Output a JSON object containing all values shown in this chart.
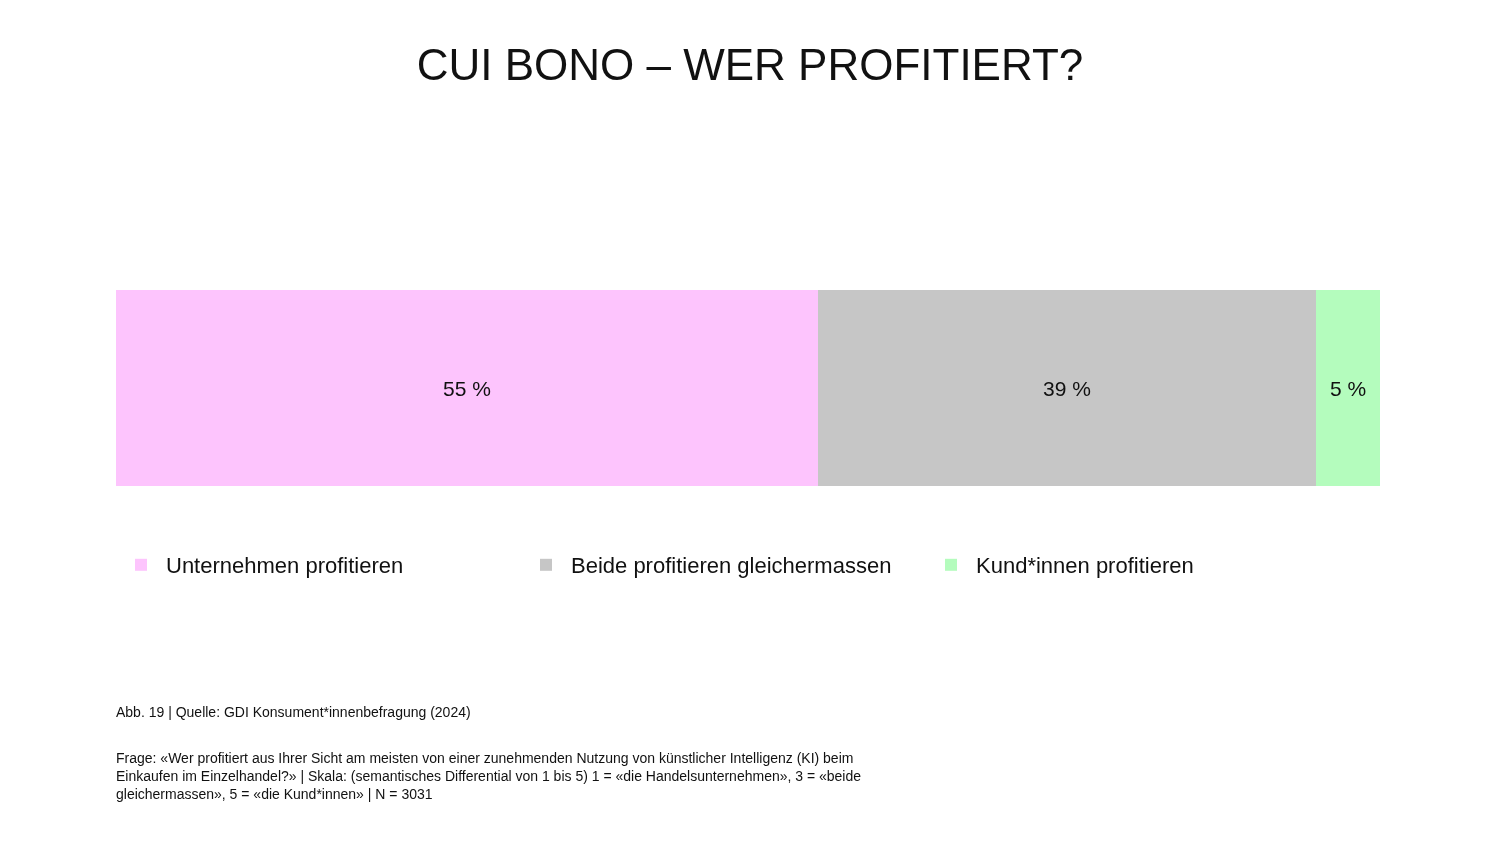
{
  "chart_data": {
    "type": "bar",
    "title": "CUI BONO – WER PROFITIERT?",
    "orientation": "horizontal",
    "stacked": true,
    "categories": [
      null
    ],
    "series": [
      {
        "name": "Unternehmen profitieren",
        "color": "#fdc4fd",
        "values": [
          55
        ],
        "value_labels": [
          "55 %"
        ]
      },
      {
        "name": "Beide profitieren gleichermassen",
        "color": "#c6c6c6",
        "values": [
          39
        ],
        "value_labels": [
          "39 %"
        ]
      },
      {
        "name": "Kund*innen profitieren",
        "color": "#b4fcbd",
        "values": [
          5
        ],
        "value_labels": [
          "5 %"
        ]
      }
    ],
    "xlim": [
      0,
      99
    ],
    "legend": "bottom",
    "annotations": [
      "Abb. 19 | Quelle: GDI Konsument*innenbefragung (2024)",
      "Frage: «Wer profitiert aus Ihrer Sicht am meisten von einer zunehmenden Nutzung von künstlicher Intelligenz (KI) beim\nEinkaufen im Einzelhandel?» | Skala: (semantisches Differential von 1 bis 5) 1 = «die Handelsunternehmen», 3 = «beide\ngleichermassen», 5 = «die Kund*innen» | N = 3031"
    ]
  }
}
